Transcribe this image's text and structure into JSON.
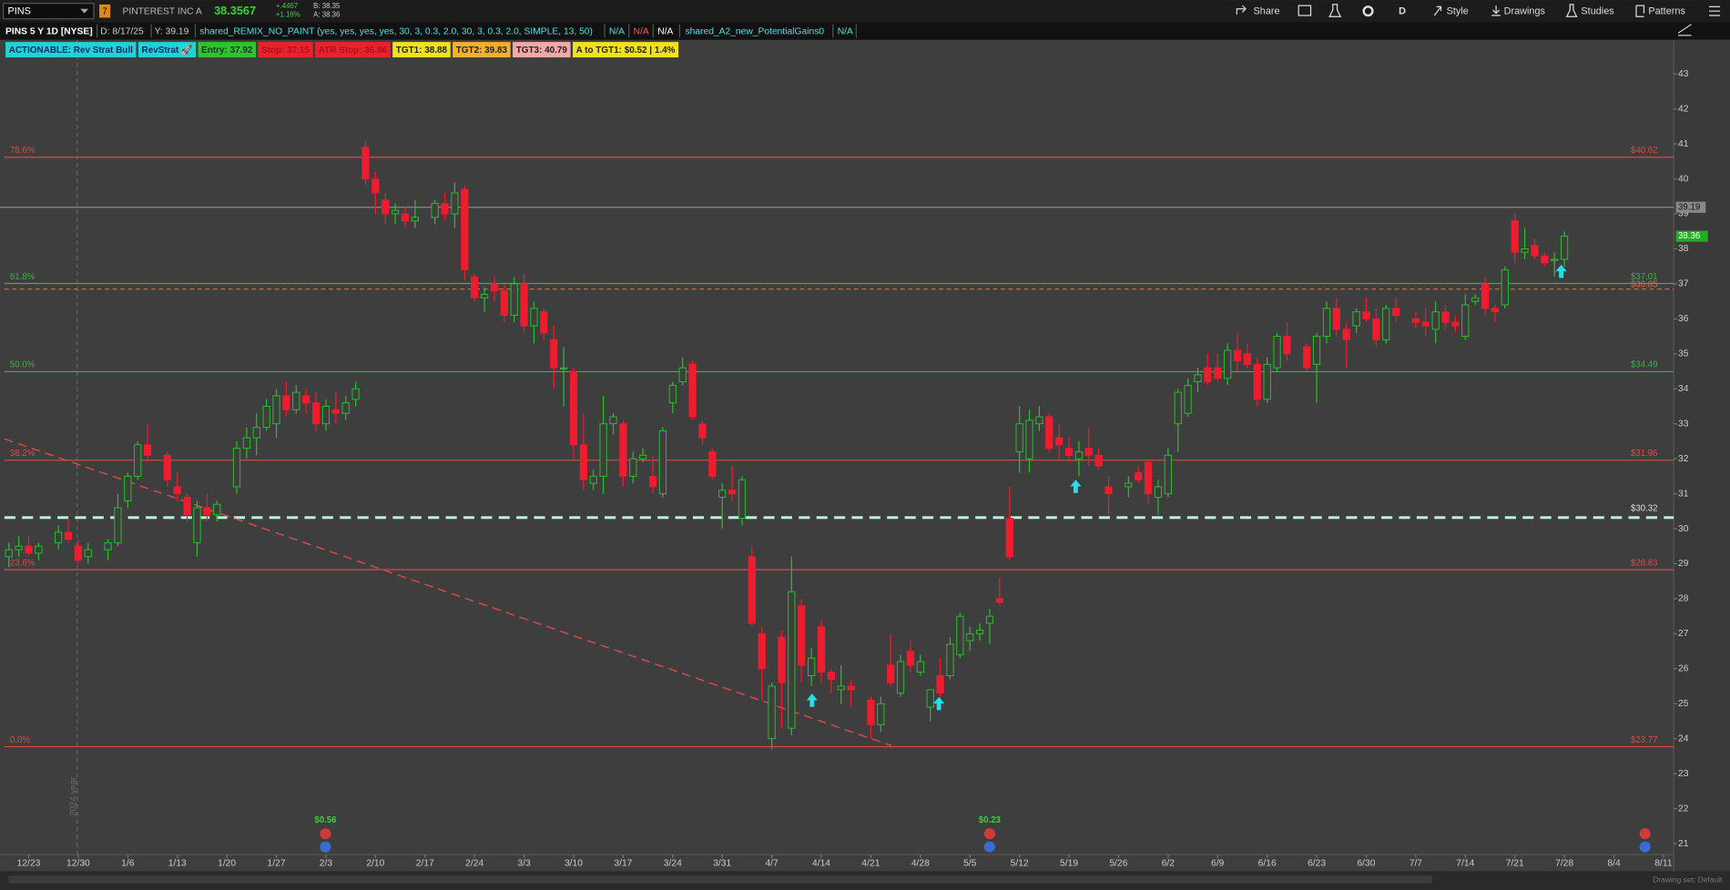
{
  "toolbar": {
    "symbol": "PINS",
    "link": "7",
    "company": "PINTEREST INC A",
    "last": "38.3567",
    "change": "+.4467",
    "change_pct": "+1.18%",
    "bid": "B: 38.35",
    "ask": "A: 38.36",
    "period": "D",
    "share": "Share",
    "style": "Style",
    "drawings": "Drawings",
    "studies": "Studies",
    "patterns": "Patterns"
  },
  "info_bar": {
    "title": "PINS 5 Y 1D [NYSE]",
    "date": "D: 8/17/25",
    "y": "Y: 39.19",
    "study1": "shared_REMIX_NO_PAINT (yes, yes, yes, yes, 30, 3, 0.3, 2.0, 30, 3, 0.3, 2.0, SIMPLE, 13, 50)",
    "na1": "N/A",
    "na2": "N/A",
    "na3": "N/A",
    "study2": "shared_A2_new_PotentialGains0",
    "na4": "N/A"
  },
  "badges": [
    {
      "text": "ACTIONABLE: Rev Strat Bull",
      "bg": "#22d3d3",
      "fg": "#0a2a6a"
    },
    {
      "text": "RevStrat 🚀",
      "bg": "#22d3d3",
      "fg": "#0a2a6a"
    },
    {
      "text": "Entry: 37.92",
      "bg": "#33c033",
      "fg": "#0a3a0a"
    },
    {
      "text": "Stop: 37.15",
      "bg": "#e8232e",
      "fg": "#b01018"
    },
    {
      "text": "ATR Stop: 36.86",
      "bg": "#e8232e",
      "fg": "#b01018"
    },
    {
      "text": "TGT1: 38.88",
      "bg": "#f2e21a",
      "fg": "#222"
    },
    {
      "text": "TGT2: 39.83",
      "bg": "#f0b030",
      "fg": "#222"
    },
    {
      "text": "TGT3: 40.79",
      "bg": "#f4a8a8",
      "fg": "#222"
    },
    {
      "text": "A to TGT1: $0.52 | 1.4%",
      "bg": "#f2e21a",
      "fg": "#222"
    }
  ],
  "chart": {
    "price_ticks": [
      21,
      22,
      23,
      24,
      25,
      26,
      27,
      28,
      29,
      30,
      31,
      32,
      33,
      34,
      35,
      36,
      37,
      38,
      39,
      40,
      41,
      42,
      43
    ],
    "ylim": [
      21,
      43
    ],
    "dates": [
      "12/23",
      "12/30",
      "1/6",
      "1/13",
      "1/20",
      "1/27",
      "2/3",
      "2/10",
      "2/17",
      "2/24",
      "3/3",
      "3/10",
      "3/17",
      "3/24",
      "3/31",
      "4/7",
      "4/14",
      "4/21",
      "4/28",
      "5/5",
      "5/12",
      "5/19",
      "5/26",
      "6/2",
      "6/9",
      "6/16",
      "6/23",
      "6/30",
      "7/7",
      "7/14",
      "7/21",
      "7/28",
      "8/4",
      "8/11"
    ],
    "watermark": "2024 year",
    "up_color": "#2bbf2b",
    "down_color": "#ee1c2e",
    "candles": [
      [
        29.2,
        29.6,
        28.9,
        29.4
      ],
      [
        29.4,
        29.8,
        29.2,
        29.5
      ],
      [
        29.5,
        29.8,
        29.2,
        29.3
      ],
      [
        29.3,
        29.6,
        29.1,
        29.5
      ],
      null,
      [
        29.6,
        30.1,
        29.4,
        29.9
      ],
      [
        29.9,
        30.3,
        29.6,
        29.7
      ],
      [
        29.5,
        29.7,
        29.0,
        29.1
      ],
      [
        29.2,
        29.6,
        29.0,
        29.4
      ],
      null,
      [
        29.4,
        29.7,
        29.1,
        29.6
      ],
      [
        29.6,
        31.0,
        29.5,
        30.6
      ],
      [
        30.8,
        31.6,
        30.6,
        31.5
      ],
      [
        31.5,
        32.5,
        31.4,
        32.4
      ],
      [
        32.4,
        33.0,
        31.9,
        32.1
      ],
      null,
      [
        32.1,
        32.2,
        31.2,
        31.4
      ],
      [
        31.2,
        31.6,
        30.8,
        31.0
      ],
      [
        30.9,
        31.0,
        30.2,
        30.4
      ],
      [
        29.6,
        30.8,
        29.2,
        30.6
      ],
      [
        30.6,
        31.0,
        30.2,
        30.4
      ],
      [
        30.4,
        30.8,
        30.2,
        30.7
      ],
      null,
      [
        31.2,
        32.5,
        31.0,
        32.3
      ],
      [
        32.3,
        32.9,
        32.0,
        32.6
      ],
      [
        32.6,
        33.3,
        32.1,
        32.9
      ],
      [
        32.9,
        33.7,
        32.8,
        33.5
      ],
      [
        33.0,
        34.0,
        32.6,
        33.8
      ],
      [
        33.8,
        34.2,
        33.2,
        33.4
      ],
      [
        33.4,
        34.1,
        33.3,
        33.9
      ],
      [
        33.8,
        34.0,
        33.3,
        33.6
      ],
      [
        33.6,
        33.9,
        32.8,
        33.0
      ],
      [
        33.0,
        33.7,
        32.8,
        33.5
      ],
      [
        33.4,
        33.9,
        33.0,
        33.3
      ],
      [
        33.3,
        33.8,
        33.1,
        33.6
      ],
      [
        33.7,
        34.2,
        33.5,
        34.0
      ],
      [
        40.9,
        41.1,
        39.8,
        40.0
      ],
      [
        40.0,
        40.2,
        39.0,
        39.6
      ],
      [
        39.4,
        39.6,
        38.7,
        39.0
      ],
      [
        39.0,
        39.3,
        38.7,
        39.1
      ],
      [
        39.0,
        39.2,
        38.6,
        38.8
      ],
      [
        38.8,
        39.4,
        38.6,
        38.9
      ],
      null,
      [
        38.9,
        39.4,
        38.7,
        39.3
      ],
      [
        39.3,
        39.6,
        38.8,
        39.0
      ],
      [
        39.0,
        39.9,
        38.6,
        39.6
      ],
      [
        39.7,
        39.8,
        37.1,
        37.4
      ],
      [
        37.2,
        37.3,
        36.5,
        36.6
      ],
      [
        36.6,
        36.9,
        36.2,
        36.7
      ],
      [
        37.0,
        37.2,
        36.5,
        36.8
      ],
      [
        36.8,
        37.0,
        35.9,
        36.1
      ],
      [
        36.1,
        37.2,
        35.9,
        37.0
      ],
      [
        37.0,
        37.3,
        35.6,
        35.8
      ],
      [
        35.8,
        36.5,
        35.3,
        36.3
      ],
      [
        36.2,
        36.3,
        35.4,
        35.6
      ],
      [
        35.4,
        35.8,
        34.0,
        34.6
      ],
      [
        34.6,
        35.2,
        33.5,
        34.6
      ],
      [
        34.5,
        34.6,
        32.0,
        32.4
      ],
      [
        32.4,
        33.3,
        31.1,
        31.4
      ],
      [
        31.3,
        31.7,
        31.1,
        31.5
      ],
      [
        31.5,
        33.8,
        31.0,
        33.0
      ],
      [
        33.0,
        33.3,
        32.7,
        33.2
      ],
      [
        33.0,
        33.1,
        31.2,
        31.5
      ],
      [
        31.5,
        32.2,
        31.3,
        32.0
      ],
      [
        32.0,
        32.3,
        31.9,
        32.1
      ],
      [
        31.5,
        32.1,
        31.0,
        31.2
      ],
      [
        31.0,
        32.9,
        30.9,
        32.8
      ],
      [
        33.6,
        34.2,
        33.3,
        34.1
      ],
      [
        34.2,
        34.9,
        34.1,
        34.6
      ],
      [
        34.7,
        34.8,
        33.1,
        33.2
      ],
      [
        33.0,
        33.1,
        32.4,
        32.6
      ],
      [
        32.2,
        32.3,
        31.4,
        31.5
      ],
      [
        30.9,
        31.3,
        30.0,
        31.1
      ],
      [
        31.1,
        31.8,
        30.8,
        31.0
      ],
      [
        30.3,
        31.5,
        30.1,
        31.4
      ],
      [
        29.2,
        29.5,
        27.2,
        27.3
      ],
      [
        27.0,
        27.2,
        25.1,
        26.0
      ],
      [
        24.0,
        25.6,
        23.7,
        25.5
      ],
      [
        26.9,
        27.1,
        24.3,
        25.6
      ],
      [
        24.3,
        29.2,
        24.1,
        28.2
      ],
      [
        27.8,
        28.0,
        25.6,
        26.1
      ],
      [
        25.8,
        26.6,
        25.5,
        26.3
      ],
      [
        27.2,
        27.4,
        25.6,
        25.9
      ],
      [
        25.9,
        26.0,
        25.3,
        25.7
      ],
      [
        25.4,
        26.1,
        25.0,
        25.5
      ],
      [
        25.5,
        25.7,
        24.9,
        25.4
      ],
      null,
      [
        25.1,
        25.2,
        24.0,
        24.4
      ],
      [
        24.4,
        25.2,
        24.2,
        25.0
      ],
      [
        26.1,
        27.0,
        25.5,
        25.6
      ],
      [
        25.3,
        26.4,
        25.2,
        26.2
      ],
      [
        26.5,
        26.8,
        25.9,
        26.1
      ],
      [
        25.9,
        26.4,
        25.8,
        26.2
      ],
      [
        24.9,
        25.4,
        24.5,
        25.4
      ],
      [
        25.8,
        26.3,
        25.1,
        25.3
      ],
      [
        25.8,
        26.9,
        25.7,
        26.7
      ],
      [
        26.4,
        27.6,
        26.3,
        27.5
      ],
      [
        26.8,
        27.2,
        26.5,
        27.0
      ],
      [
        27.0,
        27.3,
        26.8,
        27.1
      ],
      [
        27.3,
        27.7,
        26.7,
        27.5
      ],
      [
        28.0,
        28.6,
        27.8,
        27.9
      ],
      [
        30.3,
        31.2,
        29.1,
        29.2
      ],
      [
        32.2,
        33.5,
        31.6,
        33.0
      ],
      [
        32.0,
        33.4,
        31.6,
        33.1
      ],
      [
        33.0,
        33.5,
        32.8,
        33.2
      ],
      [
        33.2,
        33.3,
        32.2,
        32.3
      ],
      [
        32.6,
        33.0,
        32.0,
        32.4
      ],
      [
        32.3,
        32.6,
        31.9,
        32.1
      ],
      [
        32.0,
        32.5,
        31.5,
        32.2
      ],
      [
        32.3,
        32.9,
        31.8,
        32.1
      ],
      [
        32.1,
        32.3,
        31.7,
        31.8
      ],
      [
        31.2,
        31.5,
        30.4,
        31.0
      ],
      null,
      [
        31.2,
        31.5,
        30.9,
        31.3
      ],
      [
        31.6,
        31.8,
        31.3,
        31.4
      ],
      [
        31.9,
        32.0,
        30.7,
        31.0
      ],
      [
        30.9,
        31.4,
        30.4,
        31.2
      ],
      [
        31.0,
        32.3,
        30.9,
        32.1
      ],
      [
        33.0,
        34.0,
        32.2,
        33.9
      ],
      [
        33.3,
        34.3,
        33.2,
        34.1
      ],
      [
        34.2,
        34.6,
        33.9,
        34.4
      ],
      [
        34.6,
        35.0,
        34.1,
        34.2
      ],
      [
        34.6,
        35.0,
        34.2,
        34.3
      ],
      [
        34.3,
        35.3,
        34.1,
        35.1
      ],
      [
        35.1,
        35.6,
        34.5,
        34.8
      ],
      [
        35.0,
        35.3,
        34.6,
        34.7
      ],
      [
        34.7,
        34.9,
        33.5,
        33.7
      ],
      [
        33.7,
        34.9,
        33.6,
        34.7
      ],
      [
        34.6,
        35.6,
        34.5,
        35.5
      ],
      [
        35.5,
        35.9,
        34.8,
        35.0
      ],
      null,
      [
        35.2,
        35.3,
        34.5,
        34.6
      ],
      [
        34.7,
        35.6,
        33.6,
        35.5
      ],
      [
        35.5,
        36.5,
        35.3,
        36.3
      ],
      [
        36.3,
        36.6,
        35.5,
        35.7
      ],
      [
        35.7,
        35.9,
        34.6,
        35.4
      ],
      [
        35.8,
        36.3,
        35.6,
        36.2
      ],
      [
        36.2,
        36.6,
        35.9,
        36.0
      ],
      [
        36.0,
        36.3,
        35.2,
        35.4
      ],
      [
        35.4,
        36.4,
        35.3,
        36.3
      ],
      [
        36.3,
        36.6,
        35.9,
        36.1
      ],
      null,
      [
        36.0,
        36.2,
        35.7,
        35.9
      ],
      [
        35.9,
        36.3,
        35.5,
        35.8
      ],
      [
        35.7,
        36.5,
        35.3,
        36.2
      ],
      [
        36.2,
        36.4,
        35.7,
        35.9
      ],
      [
        35.9,
        36.1,
        35.6,
        35.8
      ],
      [
        35.5,
        36.7,
        35.4,
        36.4
      ],
      [
        36.5,
        36.7,
        36.4,
        36.6
      ],
      [
        37.0,
        37.2,
        36.1,
        36.3
      ],
      [
        36.3,
        36.4,
        35.9,
        36.2
      ],
      [
        36.4,
        37.5,
        36.3,
        37.4
      ],
      [
        38.8,
        39.0,
        37.6,
        37.9
      ],
      [
        37.9,
        38.6,
        37.7,
        38.0
      ],
      [
        38.1,
        38.3,
        37.7,
        37.8
      ],
      [
        37.8,
        37.9,
        37.5,
        37.6
      ],
      [
        37.7,
        37.9,
        37.2,
        37.7
      ],
      [
        37.7,
        38.5,
        37.5,
        38.36
      ]
    ],
    "fib_levels": [
      {
        "pct": "78.6%",
        "label": "$40.62",
        "value": 40.62,
        "color": "#d84a4a"
      },
      {
        "pct": "61.8%",
        "label": "$37.01",
        "value": 37.01,
        "color": "#3cb043"
      },
      {
        "pct": "50.0%",
        "label": "$34.49",
        "value": 34.49,
        "color": "#3cb043"
      },
      {
        "pct": "38.2%",
        "label": "$31.96",
        "value": 31.96,
        "color": "#d84a4a"
      },
      {
        "pct": "23.6%",
        "label": "$28.83",
        "value": 28.83,
        "color": "#d84a4a"
      },
      {
        "pct": "0.0%",
        "label": "$23.77",
        "value": 23.77,
        "color": "#d84a4a"
      }
    ],
    "dashed_level": {
      "label": "$36.85",
      "value": 36.85,
      "color": "#d86a4a"
    },
    "support": {
      "label": "$30.32",
      "value": 30.32,
      "color": "#b8f0d8"
    },
    "cursor_level": {
      "label": "39.19",
      "value": 39.19
    },
    "last_price": {
      "label": "38.36",
      "value": 38.36
    },
    "trendline": {
      "start": 32.57,
      "end": 23.8,
      "color": "#d84a4a"
    },
    "earnings": [
      "$0.56",
      "$0.23"
    ],
    "drawing_set": "Drawing set: Default"
  }
}
